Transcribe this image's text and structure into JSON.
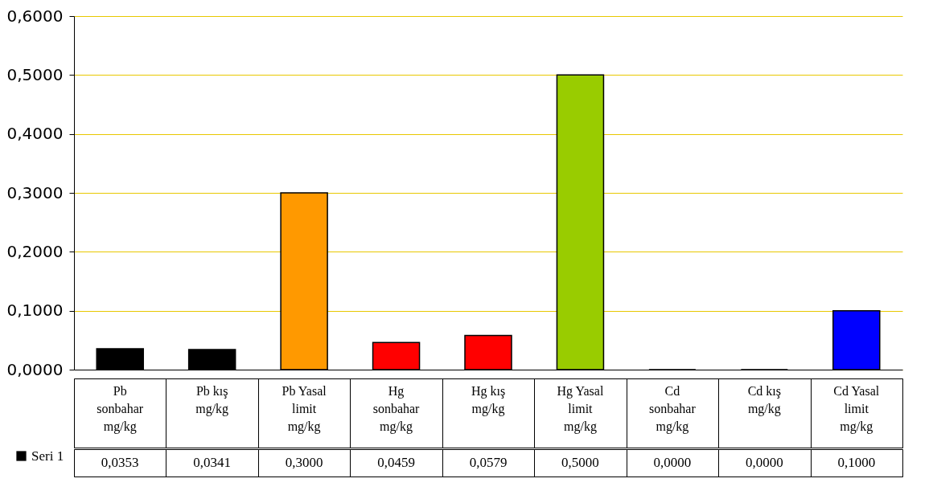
{
  "chart_data": {
    "type": "bar",
    "categories": [
      "Pb sonbahar mg/kg",
      "Pb kış mg/kg",
      "Pb Yasal limit mg/kg",
      "Hg sonbahar mg/kg",
      "Hg kış mg/kg",
      "Hg Yasal limit mg/kg",
      "Cd sonbahar mg/kg",
      "Cd kış mg/kg",
      "Cd Yasal limit mg/kg"
    ],
    "series": [
      {
        "name": "Seri 1",
        "color": "#000000",
        "colors": [
          "#000000",
          "#000000",
          "#ff9900",
          "#ff0000",
          "#ff0000",
          "#99cc00",
          "#000000",
          "#000000",
          "#0000ff"
        ],
        "values": [
          0.0353,
          0.0341,
          0.3,
          0.0459,
          0.0579,
          0.5,
          0,
          0,
          0.1
        ],
        "value_labels": [
          "0,0353",
          "0,0341",
          "0,3000",
          "0,0459",
          "0,0579",
          "0,5000",
          "0,0000",
          "0,0000",
          "0,1000"
        ]
      }
    ],
    "ylim": [
      0,
      0.6
    ],
    "yticks": [
      {
        "value": 0,
        "label": "0,0000"
      },
      {
        "value": 0.1,
        "label": "0,1000"
      },
      {
        "value": 0.2,
        "label": "0,2000"
      },
      {
        "value": 0.3,
        "label": "0,3000"
      },
      {
        "value": 0.4,
        "label": "0,4000"
      },
      {
        "value": 0.5,
        "label": "0,5000"
      },
      {
        "value": 0.6,
        "label": "0,6000"
      }
    ],
    "grid": "y",
    "legend": "bottom left"
  }
}
